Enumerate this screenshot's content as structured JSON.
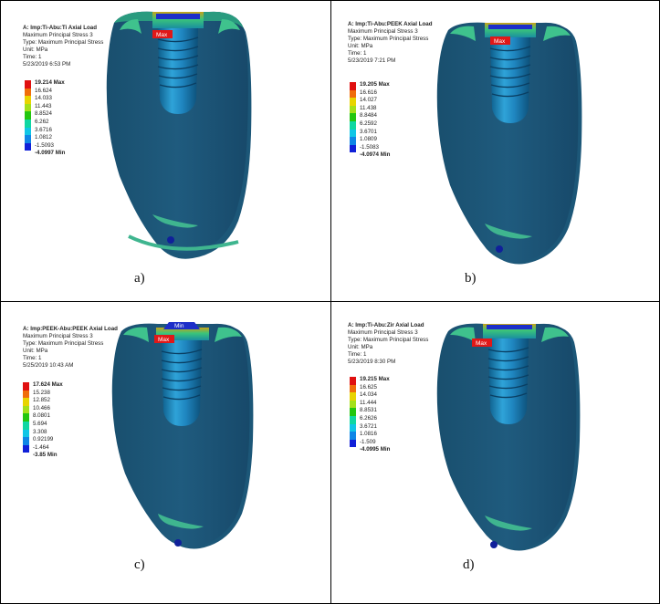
{
  "legend_colors": [
    "#e01010",
    "#f06d0a",
    "#e8d400",
    "#a4e01a",
    "#23c60f",
    "#10d7a2",
    "#10c6e6",
    "#0f86e6",
    "#1020d8"
  ],
  "panels": [
    {
      "title": "A: Imp:Ti-Abu:Ti Axial Load",
      "line1": "Maximum Principal Stress 3",
      "line2": "Type: Maximum Principal Stress",
      "line3": "Unit: MPa",
      "line4": "Time: 1",
      "date": "5/23/2019 6:53 PM",
      "legend": [
        "19.214 Max",
        "16.624",
        "14.033",
        "11.443",
        "8.8524",
        "6.262",
        "3.6716",
        "1.0812",
        "-1.5093",
        "-4.0997 Min"
      ],
      "max_tag": "Max",
      "caption": "a)"
    },
    {
      "title": "A: Imp:Ti-Abu:PEEK Axial Load",
      "line1": "Maximum Principal Stress 3",
      "line2": "Type: Maximum Principal Stress",
      "line3": "Unit: MPa",
      "line4": "Time: 1",
      "date": "5/23/2019 7:21 PM",
      "legend": [
        "19.205 Max",
        "16.616",
        "14.027",
        "11.438",
        "8.8484",
        "6.2592",
        "3.6701",
        "1.0809",
        "-1.5083",
        "-4.0974 Min"
      ],
      "max_tag": "Max",
      "caption": "b)"
    },
    {
      "title": "A: Imp:PEEK-Abu:PEEK Axial Load",
      "line1": "Maximum Principal Stress 3",
      "line2": "Type: Maximum Principal Stress",
      "line3": "Unit: MPa",
      "line4": "Time: 1",
      "date": "5/25/2019 10:43 AM",
      "legend": [
        "17.624 Max",
        "15.238",
        "12.852",
        "10.466",
        "8.0801",
        "5.694",
        "3.308",
        "0.92199",
        "-1.464",
        "-3.85 Min"
      ],
      "max_tag": "Max",
      "min_tag": "Min",
      "caption": "c)"
    },
    {
      "title": "A: Imp:Ti-Abu:Zir Axial Load",
      "line1": "Maximum Principal Stress 3",
      "line2": "Type: Maximum Principal Stress",
      "line3": "Unit: MPa",
      "line4": "Time: 1",
      "date": "5/23/2019 8:30 PM",
      "legend": [
        "19.215 Max",
        "16.625",
        "14.034",
        "11.444",
        "8.8531",
        "6.2626",
        "3.6721",
        "1.0816",
        "-1.509",
        "-4.0995 Min"
      ],
      "max_tag": "Max",
      "caption": "d)"
    }
  ]
}
